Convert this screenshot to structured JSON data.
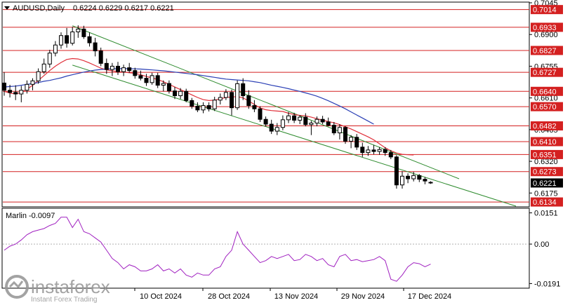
{
  "header": {
    "title": "AUDUSD,Daily",
    "ohlc": "0.6224 0.6229 0.6217 0.6221"
  },
  "chart_data": [
    {
      "type": "candlestick",
      "title": "AUDUSD,Daily",
      "ylim": [
        0.6115,
        0.7045
      ],
      "price_ticks": [
        "0.7045",
        "0.6900",
        "0.6755",
        "0.6610",
        "0.6465",
        "0.6320",
        "0.6175"
      ],
      "x_labels": [
        "10 Oct 2024",
        "28 Oct 2024",
        "13 Nov 2024",
        "29 Nov 2024",
        "17 Dec 2024"
      ],
      "current_price": "0.6221",
      "levels": [
        {
          "label": "0.7014",
          "value": 0.7014
        },
        {
          "label": "0.6933",
          "value": 0.6933
        },
        {
          "label": "0.6827",
          "value": 0.6827
        },
        {
          "label": "0.6727",
          "value": 0.6727
        },
        {
          "label": "0.6640",
          "value": 0.664
        },
        {
          "label": "0.6570",
          "value": 0.657
        },
        {
          "label": "0.6482",
          "value": 0.6482
        },
        {
          "label": "0.6410",
          "value": 0.641
        },
        {
          "label": "0.6351",
          "value": 0.6351
        },
        {
          "label": "0.6273",
          "value": 0.6273
        },
        {
          "label": "0.6134",
          "value": 0.6134
        }
      ],
      "candles": [
        {
          "o": 0.6678,
          "h": 0.6728,
          "l": 0.662,
          "c": 0.6645
        },
        {
          "o": 0.6645,
          "h": 0.667,
          "l": 0.6612,
          "c": 0.6635
        },
        {
          "o": 0.6635,
          "h": 0.6668,
          "l": 0.66,
          "c": 0.6628
        },
        {
          "o": 0.6628,
          "h": 0.6665,
          "l": 0.659,
          "c": 0.6645
        },
        {
          "o": 0.6645,
          "h": 0.669,
          "l": 0.663,
          "c": 0.6672
        },
        {
          "o": 0.6672,
          "h": 0.67,
          "l": 0.6645,
          "c": 0.6688
        },
        {
          "o": 0.6688,
          "h": 0.6745,
          "l": 0.6675,
          "c": 0.673
        },
        {
          "o": 0.673,
          "h": 0.679,
          "l": 0.672,
          "c": 0.6765
        },
        {
          "o": 0.6765,
          "h": 0.683,
          "l": 0.6748,
          "c": 0.6815
        },
        {
          "o": 0.6815,
          "h": 0.687,
          "l": 0.68,
          "c": 0.6852
        },
        {
          "o": 0.6852,
          "h": 0.691,
          "l": 0.6835,
          "c": 0.6895
        },
        {
          "o": 0.6895,
          "h": 0.693,
          "l": 0.684,
          "c": 0.686
        },
        {
          "o": 0.686,
          "h": 0.6935,
          "l": 0.685,
          "c": 0.6912
        },
        {
          "o": 0.6912,
          "h": 0.6942,
          "l": 0.6885,
          "c": 0.6925
        },
        {
          "o": 0.6925,
          "h": 0.694,
          "l": 0.688,
          "c": 0.689
        },
        {
          "o": 0.689,
          "h": 0.691,
          "l": 0.6845,
          "c": 0.6862
        },
        {
          "o": 0.6862,
          "h": 0.6885,
          "l": 0.68,
          "c": 0.6825
        },
        {
          "o": 0.6825,
          "h": 0.684,
          "l": 0.6755,
          "c": 0.6768
        },
        {
          "o": 0.6768,
          "h": 0.679,
          "l": 0.672,
          "c": 0.674
        },
        {
          "o": 0.674,
          "h": 0.677,
          "l": 0.671,
          "c": 0.6755
        },
        {
          "o": 0.6755,
          "h": 0.6775,
          "l": 0.6715,
          "c": 0.673
        },
        {
          "o": 0.673,
          "h": 0.6762,
          "l": 0.671,
          "c": 0.6748
        },
        {
          "o": 0.6748,
          "h": 0.677,
          "l": 0.6725,
          "c": 0.6735
        },
        {
          "o": 0.6735,
          "h": 0.6748,
          "l": 0.6698,
          "c": 0.6712
        },
        {
          "o": 0.6712,
          "h": 0.6735,
          "l": 0.669,
          "c": 0.67
        },
        {
          "o": 0.67,
          "h": 0.672,
          "l": 0.6665,
          "c": 0.668
        },
        {
          "o": 0.668,
          "h": 0.6725,
          "l": 0.667,
          "c": 0.6712
        },
        {
          "o": 0.6712,
          "h": 0.6725,
          "l": 0.6655,
          "c": 0.6668
        },
        {
          "o": 0.6668,
          "h": 0.669,
          "l": 0.664,
          "c": 0.6676
        },
        {
          "o": 0.6676,
          "h": 0.669,
          "l": 0.663,
          "c": 0.6642
        },
        {
          "o": 0.6642,
          "h": 0.666,
          "l": 0.6605,
          "c": 0.662
        },
        {
          "o": 0.662,
          "h": 0.6655,
          "l": 0.6605,
          "c": 0.664
        },
        {
          "o": 0.664,
          "h": 0.6652,
          "l": 0.659,
          "c": 0.6598
        },
        {
          "o": 0.6598,
          "h": 0.661,
          "l": 0.656,
          "c": 0.6572
        },
        {
          "o": 0.6572,
          "h": 0.659,
          "l": 0.6545,
          "c": 0.6555
        },
        {
          "o": 0.6555,
          "h": 0.659,
          "l": 0.654,
          "c": 0.6575
        },
        {
          "o": 0.6575,
          "h": 0.659,
          "l": 0.6548,
          "c": 0.656
        },
        {
          "o": 0.656,
          "h": 0.6615,
          "l": 0.655,
          "c": 0.66
        },
        {
          "o": 0.66,
          "h": 0.663,
          "l": 0.658,
          "c": 0.6612
        },
        {
          "o": 0.6612,
          "h": 0.665,
          "l": 0.66,
          "c": 0.6635
        },
        {
          "o": 0.6635,
          "h": 0.6648,
          "l": 0.653,
          "c": 0.6565
        },
        {
          "o": 0.6565,
          "h": 0.669,
          "l": 0.6555,
          "c": 0.6675
        },
        {
          "o": 0.6675,
          "h": 0.67,
          "l": 0.66,
          "c": 0.662
        },
        {
          "o": 0.662,
          "h": 0.6645,
          "l": 0.656,
          "c": 0.6575
        },
        {
          "o": 0.6575,
          "h": 0.66,
          "l": 0.6545,
          "c": 0.656
        },
        {
          "o": 0.656,
          "h": 0.6572,
          "l": 0.65,
          "c": 0.6512
        },
        {
          "o": 0.6512,
          "h": 0.6525,
          "l": 0.648,
          "c": 0.649
        },
        {
          "o": 0.649,
          "h": 0.651,
          "l": 0.6445,
          "c": 0.6458
        },
        {
          "o": 0.6458,
          "h": 0.6495,
          "l": 0.644,
          "c": 0.6475
        },
        {
          "o": 0.6475,
          "h": 0.653,
          "l": 0.6462,
          "c": 0.651
        },
        {
          "o": 0.651,
          "h": 0.6545,
          "l": 0.6495,
          "c": 0.6528
        },
        {
          "o": 0.6528,
          "h": 0.6542,
          "l": 0.6495,
          "c": 0.6508
        },
        {
          "o": 0.6508,
          "h": 0.6532,
          "l": 0.649,
          "c": 0.6522
        },
        {
          "o": 0.6522,
          "h": 0.654,
          "l": 0.648,
          "c": 0.6488
        },
        {
          "o": 0.6488,
          "h": 0.6505,
          "l": 0.644,
          "c": 0.6495
        },
        {
          "o": 0.6495,
          "h": 0.6525,
          "l": 0.648,
          "c": 0.6512
        },
        {
          "o": 0.6512,
          "h": 0.6528,
          "l": 0.649,
          "c": 0.65
        },
        {
          "o": 0.65,
          "h": 0.652,
          "l": 0.648,
          "c": 0.6485
        },
        {
          "o": 0.6485,
          "h": 0.65,
          "l": 0.644,
          "c": 0.645
        },
        {
          "o": 0.645,
          "h": 0.649,
          "l": 0.642,
          "c": 0.6475
        },
        {
          "o": 0.6475,
          "h": 0.648,
          "l": 0.64,
          "c": 0.6412
        },
        {
          "o": 0.6412,
          "h": 0.644,
          "l": 0.638,
          "c": 0.643
        },
        {
          "o": 0.643,
          "h": 0.6445,
          "l": 0.6372,
          "c": 0.6385
        },
        {
          "o": 0.6385,
          "h": 0.6405,
          "l": 0.634,
          "c": 0.636
        },
        {
          "o": 0.636,
          "h": 0.639,
          "l": 0.6345,
          "c": 0.6372
        },
        {
          "o": 0.6372,
          "h": 0.6395,
          "l": 0.6352,
          "c": 0.6365
        },
        {
          "o": 0.6365,
          "h": 0.6385,
          "l": 0.635,
          "c": 0.6374
        },
        {
          "o": 0.6374,
          "h": 0.6385,
          "l": 0.6345,
          "c": 0.636
        },
        {
          "o": 0.636,
          "h": 0.6372,
          "l": 0.633,
          "c": 0.634
        },
        {
          "o": 0.634,
          "h": 0.6348,
          "l": 0.6195,
          "c": 0.6212
        },
        {
          "o": 0.6212,
          "h": 0.6275,
          "l": 0.6195,
          "c": 0.6252
        },
        {
          "o": 0.6252,
          "h": 0.6265,
          "l": 0.622,
          "c": 0.624
        },
        {
          "o": 0.624,
          "h": 0.6272,
          "l": 0.6228,
          "c": 0.6255
        },
        {
          "o": 0.6255,
          "h": 0.6262,
          "l": 0.6225,
          "c": 0.6238
        },
        {
          "o": 0.6238,
          "h": 0.6248,
          "l": 0.6215,
          "c": 0.623
        },
        {
          "o": 0.6224,
          "h": 0.6229,
          "l": 0.6217,
          "c": 0.6221
        }
      ],
      "trend_lines": [
        {
          "name": "channel-upper",
          "color": "#2e8b2e",
          "points": [
            [
              12,
              0.694
            ],
            [
              80,
              0.624
            ]
          ]
        },
        {
          "name": "channel-lower",
          "color": "#2e8b2e",
          "points": [
            [
              12,
              0.676
            ],
            [
              90,
              0.6115
            ]
          ]
        }
      ],
      "ma_fast": {
        "color": "#e0303a",
        "from": 0,
        "values": [
          0.664,
          0.6632,
          0.6628,
          0.6635,
          0.665,
          0.6668,
          0.669,
          0.6712,
          0.6735,
          0.6755,
          0.6772,
          0.6786,
          0.679,
          0.6788,
          0.678,
          0.677,
          0.6758,
          0.6746,
          0.6738,
          0.6734,
          0.673,
          0.6728,
          0.6725,
          0.6722,
          0.6716,
          0.6708,
          0.6702,
          0.6694,
          0.6684,
          0.6672,
          0.666,
          0.6648,
          0.6636,
          0.6624,
          0.6612,
          0.6602,
          0.6598,
          0.66,
          0.6606,
          0.6612,
          0.6614,
          0.6616,
          0.661,
          0.6596,
          0.658,
          0.6564,
          0.6556,
          0.6552,
          0.655,
          0.6548,
          0.654,
          0.6534,
          0.653,
          0.6528,
          0.6522,
          0.6515,
          0.6508,
          0.6502,
          0.6496,
          0.6488,
          0.6478,
          0.6468,
          0.6456,
          0.6444,
          0.6432,
          0.6418,
          0.64,
          0.6382,
          0.6368,
          0.6358,
          0.6352,
          0.635,
          0.6349
        ]
      },
      "ma_slow": {
        "color": "#2a3fb5",
        "from": 0,
        "values": [
          0.666,
          0.6662,
          0.6664,
          0.6668,
          0.6672,
          0.6676,
          0.668,
          0.6686,
          0.669,
          0.6696,
          0.6702,
          0.671,
          0.6716,
          0.6722,
          0.6728,
          0.6733,
          0.6737,
          0.674,
          0.6742,
          0.6743,
          0.6744,
          0.6744,
          0.6744,
          0.6743,
          0.6742,
          0.674,
          0.6738,
          0.6736,
          0.6734,
          0.6731,
          0.6728,
          0.6725,
          0.6722,
          0.6719,
          0.6716,
          0.6712,
          0.6708,
          0.6704,
          0.67,
          0.6696,
          0.6694,
          0.6692,
          0.669,
          0.6688,
          0.6684,
          0.668,
          0.6674,
          0.6668,
          0.6663,
          0.6658,
          0.6652,
          0.6646,
          0.664,
          0.6633,
          0.6626,
          0.6618,
          0.6608,
          0.6597,
          0.6585,
          0.6573,
          0.656,
          0.6546,
          0.6532,
          0.6518,
          0.6504,
          0.649
        ]
      }
    },
    {
      "type": "line",
      "title": "Marlin -0.0097",
      "ylim": [
        -0.021,
        0.017
      ],
      "ticks": [
        "0.0151",
        "0.00",
        "-0.0191"
      ],
      "series": [
        {
          "color": "#a020c0",
          "values": [
            -0.003,
            -0.001,
            0.0,
            0.002,
            0.0045,
            0.006,
            0.0068,
            0.0075,
            0.009,
            0.01,
            0.013,
            0.013,
            0.008,
            0.012,
            0.006,
            0.005,
            0.003,
            0.001,
            -0.003,
            -0.007,
            -0.009,
            -0.012,
            -0.01,
            -0.011,
            -0.013,
            -0.013,
            -0.012,
            -0.01,
            -0.013,
            -0.012,
            -0.014,
            -0.012,
            -0.015,
            -0.016,
            -0.014,
            -0.015,
            -0.015,
            -0.012,
            -0.011,
            -0.006,
            -0.003,
            0.006,
            0.0,
            -0.003,
            -0.006,
            -0.009,
            -0.008,
            -0.006,
            -0.007,
            -0.006,
            -0.005,
            -0.008,
            -0.0075,
            -0.005,
            -0.006,
            -0.008,
            -0.007,
            -0.01,
            -0.011,
            -0.006,
            -0.005,
            -0.008,
            -0.0075,
            -0.0085,
            -0.008,
            -0.0075,
            -0.006,
            -0.008,
            -0.017,
            -0.018,
            -0.015,
            -0.011,
            -0.009,
            -0.0095,
            -0.011,
            -0.0097
          ]
        }
      ]
    }
  ]
}
